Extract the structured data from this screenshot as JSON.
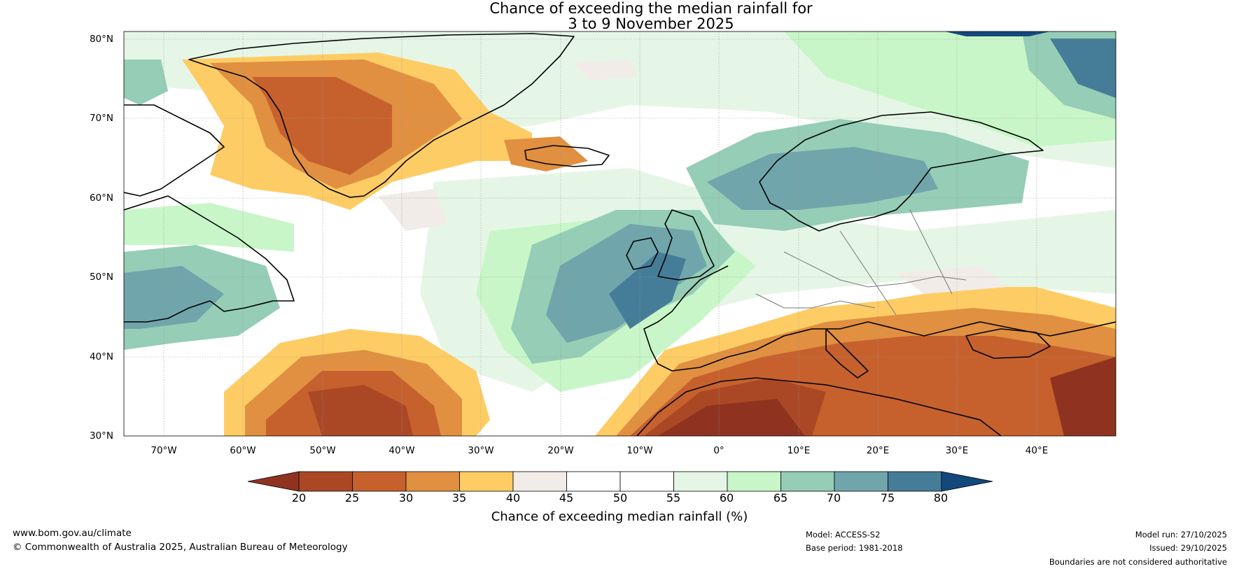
{
  "title": {
    "line1": "Chance of exceeding the median rainfall for",
    "line2": "3 to 9 November 2025"
  },
  "map": {
    "latitude_labels": [
      "80°N",
      "70°N",
      "60°N",
      "50°N",
      "40°N",
      "30°N"
    ],
    "longitude_labels": [
      "70°W",
      "60°W",
      "50°W",
      "40°W",
      "30°W",
      "20°W",
      "10°W",
      "0°",
      "10°E",
      "20°E",
      "30°E",
      "40°E"
    ],
    "lat_range": [
      30,
      81
    ],
    "lon_range": [
      -75,
      50
    ]
  },
  "colorbar": {
    "title": "Chance of exceeding median rainfall (%)",
    "ticks": [
      "20",
      "25",
      "30",
      "35",
      "40",
      "45",
      "50",
      "55",
      "60",
      "65",
      "70",
      "75",
      "80"
    ],
    "colors": [
      "#8f3320",
      "#aa4825",
      "#c6612e",
      "#e09040",
      "#fecc65",
      "#f1ece7",
      "#ffffff",
      "#ffffff",
      "#e6f6e6",
      "#c8f6c8",
      "#95cdb6",
      "#70a5ab",
      "#457c98",
      "#13487c"
    ]
  },
  "footer": {
    "website": "www.bom.gov.au/climate",
    "copyright": "© Commonwealth of Australia 2025, Australian Bureau of Meteorology",
    "model": "Model: ACCESS-S2",
    "base_period": "Base period: 1981-2018",
    "model_run": "Model run: 27/10/2025",
    "issued": "Issued: 29/10/2025",
    "boundaries": "Boundaries are not considered authoritative"
  }
}
